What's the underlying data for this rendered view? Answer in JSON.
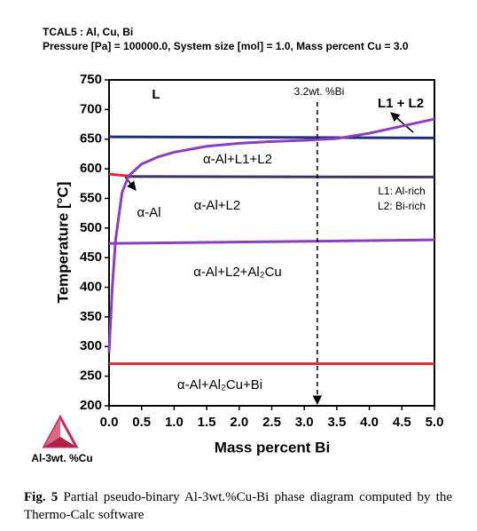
{
  "header": {
    "title": "TCAL5 : Al, Cu, Bi",
    "conditions": "Pressure [Pa] = 100000.0, System size [mol] = 1.0, Mass percent Cu = 3.0"
  },
  "chart_data": {
    "type": "line",
    "xlabel": "Mass percent Bi",
    "ylabel": "Temperature [°C]",
    "xlim": [
      0,
      5
    ],
    "ylim": [
      200,
      750
    ],
    "xticks": [
      {
        "value": 0,
        "label": "0.0"
      },
      {
        "value": 0.5,
        "label": "0.5"
      },
      {
        "value": 1,
        "label": "1.0"
      },
      {
        "value": 1.5,
        "label": "1.5"
      },
      {
        "value": 2,
        "label": "2.0"
      },
      {
        "value": 2.5,
        "label": "2.5"
      },
      {
        "value": 3,
        "label": "3.0"
      },
      {
        "value": 3.5,
        "label": "3.5"
      },
      {
        "value": 4,
        "label": "4.0"
      },
      {
        "value": 4.5,
        "label": "4.5"
      },
      {
        "value": 5,
        "label": "5.0"
      }
    ],
    "yticks": [
      200,
      250,
      300,
      350,
      400,
      450,
      500,
      550,
      600,
      650,
      700,
      750
    ],
    "grid": false,
    "series": [
      {
        "color": "#1f2f7a",
        "x": [
          0,
          5
        ],
        "values": [
          654,
          652
        ]
      },
      {
        "color": "#e0282e",
        "x": [
          0,
          0.3
        ],
        "values": [
          591,
          588
        ]
      },
      {
        "color": "#3b3566",
        "x": [
          0.3,
          5
        ],
        "values": [
          587,
          586
        ]
      },
      {
        "color": "#8a3fbf",
        "x": [
          0,
          0.05,
          0.1,
          0.2,
          0.3,
          0.5,
          0.75,
          1,
          1.5,
          2,
          2.5,
          3,
          3.5,
          4,
          4.5,
          5
        ],
        "values": [
          290,
          400,
          480,
          560,
          588,
          608,
          620,
          628,
          638,
          643,
          646,
          648,
          651,
          660,
          672,
          684
        ]
      },
      {
        "color": "#8a3fbf",
        "x": [
          0,
          5
        ],
        "values": [
          474,
          480
        ]
      },
      {
        "color": "#e0282e",
        "x": [
          0,
          5
        ],
        "values": [
          271,
          271
        ]
      }
    ],
    "vline": 3.2,
    "annotations": [
      "L",
      "L1 + L2",
      "3.2wt. %Bi",
      "α-Al+L1+L2",
      "α-Al",
      "α-Al+L2",
      "L1: Al-rich",
      "L2: Bi-rich",
      "α-Al+L2+Al₂Cu",
      "α-Al+Al₂Cu+Bi"
    ]
  },
  "logo_label": "Al-3wt. %Cu",
  "caption": {
    "label": "Fig. 5",
    "text": "Partial pseudo-binary Al-3wt.%Cu-Bi phase diagram computed by the Thermo-Calc software"
  }
}
